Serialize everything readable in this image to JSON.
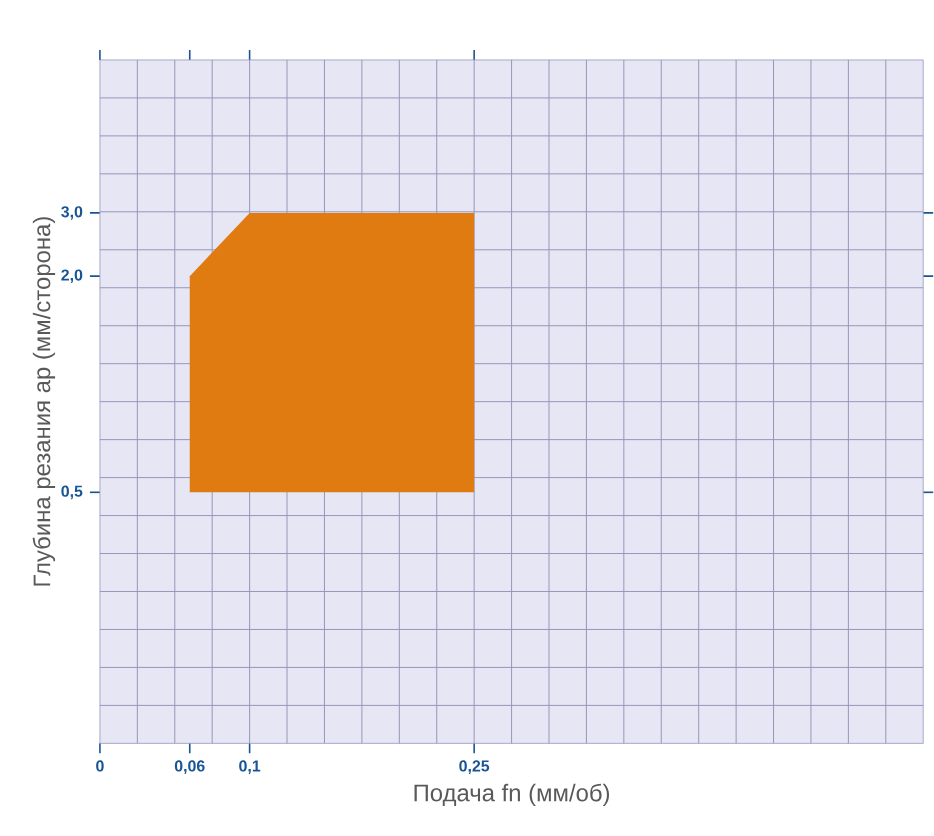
{
  "chart_data": {
    "type": "area",
    "xlabel": "Подача fn (мм/об)",
    "ylabel": "Глубина резания ap (мм/сторона)",
    "x": [
      0.06,
      0.06,
      0.1,
      0.25,
      0.25
    ],
    "values": [
      0.5,
      2.0,
      3.0,
      3.0,
      0.5
    ],
    "color": "#e07b12",
    "xlim": [
      0,
      0.55
    ],
    "ylim": [
      0.1,
      8
    ],
    "log": "y",
    "xticks": [
      {
        "value": 0,
        "label": "0"
      },
      {
        "value": 0.06,
        "label": "0,06"
      },
      {
        "value": 0.1,
        "label": "0,1"
      },
      {
        "value": 0.25,
        "label": "0,25"
      }
    ],
    "yticks": [
      {
        "value": 0.5,
        "label": "0,5"
      },
      {
        "value": 2.0,
        "label": "2,0"
      },
      {
        "value": 3.0,
        "label": "3,0"
      }
    ],
    "grid": true
  }
}
